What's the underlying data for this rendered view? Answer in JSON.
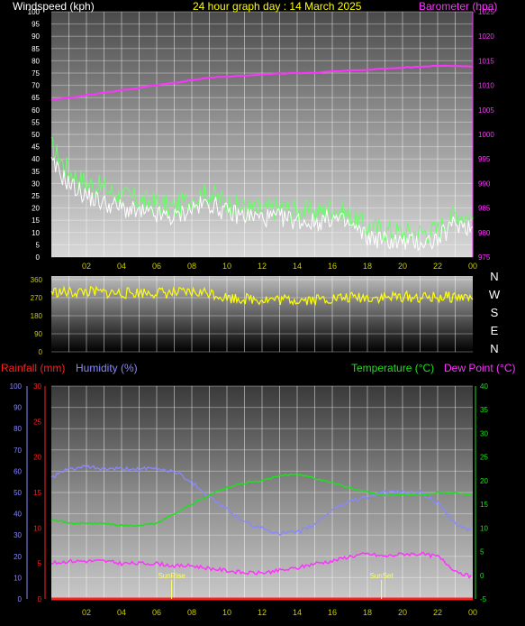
{
  "title": "24 hour graph day : 14 March 2025",
  "colors": {
    "wind": "#ffffff",
    "gust": "#66ff66",
    "baro": "#ff33ff",
    "dir": "#ffff00",
    "rain": "#ff2020",
    "humidity": "#8888ff",
    "temp": "#22dd22",
    "dew": "#ff33ff",
    "axis_gold": "#cccc00"
  },
  "chart_data": [
    {
      "type": "line",
      "id": "wind",
      "ylabel_left": "Windspeed (kph)",
      "ylabel_right": "Barometer (hpa)",
      "xticks": [
        "02",
        "04",
        "06",
        "08",
        "10",
        "12",
        "14",
        "16",
        "18",
        "20",
        "22",
        "00"
      ],
      "ylim_left": [
        0,
        100
      ],
      "yticks_left": [
        0,
        5,
        10,
        15,
        20,
        25,
        30,
        35,
        40,
        45,
        50,
        55,
        60,
        65,
        70,
        75,
        80,
        85,
        90,
        95,
        100
      ],
      "ylim_right": [
        975,
        1025
      ],
      "yticks_right": [
        975,
        980,
        985,
        990,
        995,
        1000,
        1005,
        1010,
        1015,
        1020,
        1025
      ],
      "x_hours": [
        0,
        1,
        2,
        3,
        4,
        5,
        6,
        7,
        8,
        9,
        10,
        11,
        12,
        13,
        14,
        15,
        16,
        17,
        18,
        19,
        20,
        21,
        22,
        23,
        24
      ],
      "series": [
        {
          "key": "gust",
          "values": [
            45,
            35,
            30,
            28,
            25,
            23,
            22,
            20,
            24,
            26,
            22,
            20,
            19,
            20,
            19,
            18,
            20,
            17,
            12,
            11,
            10,
            10,
            11,
            18,
            16
          ]
        },
        {
          "key": "wind",
          "values": [
            38,
            30,
            25,
            22,
            20,
            18,
            17,
            16,
            20,
            22,
            18,
            17,
            16,
            16,
            15,
            14,
            16,
            13,
            8,
            7,
            6,
            6,
            7,
            14,
            12
          ]
        },
        {
          "key": "baro",
          "values": [
            1007,
            1007.5,
            1008,
            1008.5,
            1009,
            1009.5,
            1010,
            1010.5,
            1011,
            1011.5,
            1011.8,
            1012,
            1012.2,
            1012.4,
            1012.5,
            1012.6,
            1012.8,
            1013,
            1013.2,
            1013.4,
            1013.6,
            1013.8,
            1014,
            1014,
            1013.8
          ]
        }
      ]
    },
    {
      "type": "line",
      "id": "direction",
      "ylim_left": [
        0,
        360
      ],
      "yticks_left": [
        0,
        90,
        180,
        270,
        360
      ],
      "compass": [
        "N",
        "W",
        "S",
        "E",
        "N"
      ],
      "x_hours": [
        0,
        1,
        2,
        3,
        4,
        5,
        6,
        7,
        8,
        9,
        10,
        11,
        12,
        13,
        14,
        15,
        16,
        17,
        18,
        19,
        20,
        21,
        22,
        23,
        24
      ],
      "series": [
        {
          "key": "dir",
          "values": [
            300,
            295,
            300,
            295,
            292,
            295,
            296,
            292,
            295,
            296,
            270,
            265,
            262,
            260,
            260,
            262,
            266,
            270,
            272,
            270,
            275,
            270,
            272,
            275,
            270
          ]
        }
      ]
    },
    {
      "type": "line",
      "id": "thermo",
      "ylabel_left1": "Rainfall (mm)",
      "ylabel_left2": "Humidity (%)",
      "ylabel_right1": "Temperature (°C)",
      "ylabel_right2": "Dew Point (°C)",
      "xticks": [
        "02",
        "04",
        "06",
        "08",
        "10",
        "12",
        "14",
        "16",
        "18",
        "20",
        "22",
        "00"
      ],
      "ylim_rain": [
        0,
        30
      ],
      "yticks_rain": [
        0,
        5,
        10,
        15,
        20,
        25,
        30
      ],
      "ylim_hum": [
        0,
        100
      ],
      "yticks_hum": [
        0,
        10,
        20,
        30,
        40,
        50,
        60,
        70,
        80,
        90,
        100
      ],
      "ylim_temp": [
        -5,
        40
      ],
      "yticks_temp": [
        -5,
        0,
        5,
        10,
        15,
        20,
        25,
        30,
        35,
        40
      ],
      "x_hours": [
        0,
        1,
        2,
        3,
        4,
        5,
        6,
        7,
        8,
        9,
        10,
        11,
        12,
        13,
        14,
        15,
        16,
        17,
        18,
        19,
        20,
        21,
        22,
        23,
        24
      ],
      "series": [
        {
          "key": "humidity",
          "values": [
            57,
            61,
            62,
            61,
            61,
            61,
            61,
            60,
            55,
            48,
            42,
            36,
            33,
            31,
            31,
            35,
            42,
            46,
            48,
            50,
            50,
            50,
            45,
            35,
            32
          ]
        },
        {
          "key": "temp",
          "values": [
            12,
            11,
            11,
            11,
            10.5,
            10.5,
            11,
            13,
            15,
            17,
            18.5,
            19.5,
            20,
            21,
            21.5,
            20.5,
            19.5,
            18.5,
            17.5,
            17,
            17,
            17,
            17.5,
            17.5,
            17
          ]
        },
        {
          "key": "dew",
          "values": [
            2.5,
            3,
            3,
            3,
            2.5,
            2.5,
            2.5,
            2,
            2,
            1.5,
            1,
            0.5,
            0.5,
            1,
            1.5,
            2.5,
            3,
            4,
            4.5,
            4,
            4.5,
            4.5,
            4,
            1,
            -0.5
          ]
        },
        {
          "key": "rain",
          "values": [
            0,
            0,
            0,
            0,
            0,
            0,
            0,
            0,
            0,
            0,
            0,
            0,
            0,
            0,
            0,
            0,
            0,
            0,
            0,
            0,
            0,
            0,
            0,
            0,
            0
          ]
        }
      ],
      "annotations": [
        {
          "label": "SunRise",
          "hour": 6.85
        },
        {
          "label": "SunSet",
          "hour": 18.8
        }
      ]
    }
  ],
  "labels": {
    "windspeed": "Windspeed (kph)",
    "barometer": "Barometer (hpa)",
    "rainfall": "Rainfall (mm)",
    "humidity": "Humidity (%)",
    "temperature": "Temperature (°C)",
    "dewpoint": "Dew Point (°C)"
  }
}
